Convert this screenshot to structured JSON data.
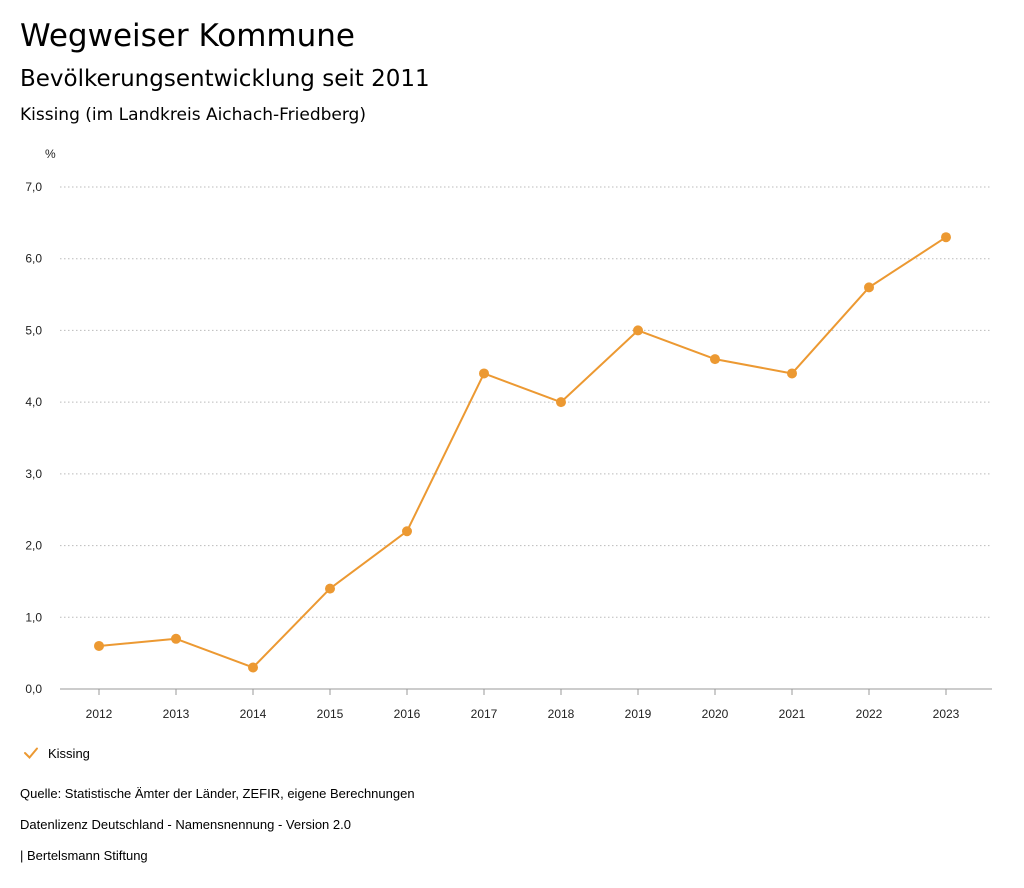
{
  "header": {
    "title": "Wegweiser Kommune",
    "subtitle": "Bevölkerungsentwicklung seit 2011",
    "region": "Kissing (im Landkreis Aichach-Friedberg)"
  },
  "chart_data": {
    "type": "line",
    "title": "Bevölkerungsentwicklung seit 2011",
    "ylabel": "%",
    "xlabel": "",
    "x": [
      "2012",
      "2013",
      "2014",
      "2015",
      "2016",
      "2017",
      "2018",
      "2019",
      "2020",
      "2021",
      "2022",
      "2023"
    ],
    "series": [
      {
        "name": "Kissing",
        "values": [
          0.6,
          0.7,
          0.3,
          1.4,
          2.2,
          4.4,
          4.0,
          5.0,
          4.6,
          4.4,
          5.6,
          6.3
        ]
      }
    ],
    "ylim": [
      0,
      7
    ],
    "yticks": [
      "0,0",
      "1,0",
      "2,0",
      "3,0",
      "4,0",
      "5,0",
      "6,0",
      "7,0"
    ],
    "grid": true,
    "legend": "bottom-left",
    "colors": {
      "series": "#ec9932",
      "grid": "#bbbbbb",
      "axis": "#999999"
    }
  },
  "legend": {
    "label": "Kissing"
  },
  "footer": {
    "source": "Quelle: Statistische Ämter der Länder, ZEFIR, eigene Berechnungen",
    "license": "Datenlizenz Deutschland - Namensnennung - Version 2.0",
    "brand": "| Bertelsmann Stiftung"
  }
}
